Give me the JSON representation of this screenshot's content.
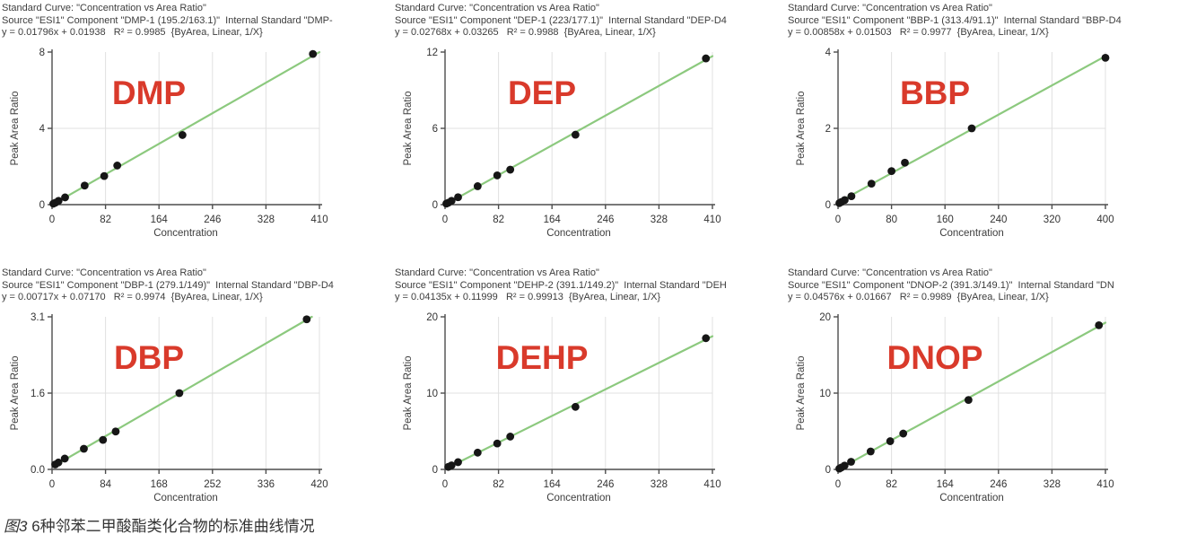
{
  "caption": {
    "figure_label": "图3",
    "text": " 6种邻苯二甲酸酯类化合物的标准曲线情况"
  },
  "colors": {
    "line": "#8cc97e",
    "point": "#161616",
    "compound_label": "#d93a2b",
    "grid": "#e0e0e0",
    "axis": "#4d4d4d",
    "tick": "#4d4d4d"
  },
  "chart_data": [
    {
      "type": "scatter",
      "compound": "DMP",
      "header_lines": [
        "Standard Curve: \"Concentration vs Area Ratio\"",
        "Source \"ESI1\" Component \"DMP-1 (195.2/163.1)\"  Internal Standard \"DMP-",
        "y = 0.01796x + 0.01938   R² = 0.9985  {ByArea, Linear, 1/X}"
      ],
      "equation": {
        "slope": 0.01796,
        "intercept": 0.01938,
        "r2": 0.9985,
        "fit": "Linear",
        "weighting": "1/X",
        "mode": "ByArea"
      },
      "xlabel": "Concentration",
      "ylabel": "Peak Area Ratio",
      "xlim": [
        0,
        410
      ],
      "ylim": [
        0,
        8
      ],
      "x_ticks": [
        0,
        82,
        164,
        246,
        328,
        410
      ],
      "y_ticks": [
        0,
        4,
        8
      ],
      "y_tick_labels": [
        "0",
        "4",
        "8"
      ],
      "points": [
        [
          2,
          0.05
        ],
        [
          5,
          0.1
        ],
        [
          10,
          0.2
        ],
        [
          20,
          0.38
        ],
        [
          50,
          1.0
        ],
        [
          80,
          1.5
        ],
        [
          100,
          2.05
        ],
        [
          200,
          3.65
        ],
        [
          400,
          7.9
        ]
      ]
    },
    {
      "type": "scatter",
      "compound": "DEP",
      "header_lines": [
        "Standard Curve: \"Concentration vs Area Ratio\"",
        "Source \"ESI1\" Component \"DEP-1 (223/177.1)\"  Internal Standard \"DEP-D4",
        "y = 0.02768x + 0.03265   R² = 0.9988  {ByArea, Linear, 1/X}"
      ],
      "equation": {
        "slope": 0.02768,
        "intercept": 0.03265,
        "r2": 0.9988,
        "fit": "Linear",
        "weighting": "1/X",
        "mode": "ByArea"
      },
      "xlabel": "Concentration",
      "ylabel": "Peak Area Ratio",
      "xlim": [
        0,
        410
      ],
      "ylim": [
        0,
        12
      ],
      "x_ticks": [
        0,
        82,
        164,
        246,
        328,
        410
      ],
      "y_ticks": [
        0,
        6,
        12
      ],
      "y_tick_labels": [
        "0",
        "6",
        "12"
      ],
      "points": [
        [
          2,
          0.08
        ],
        [
          5,
          0.15
        ],
        [
          10,
          0.3
        ],
        [
          20,
          0.58
        ],
        [
          50,
          1.45
        ],
        [
          80,
          2.3
        ],
        [
          100,
          2.75
        ],
        [
          200,
          5.5
        ],
        [
          400,
          11.5
        ]
      ]
    },
    {
      "type": "scatter",
      "compound": "BBP",
      "header_lines": [
        "Standard Curve: \"Concentration vs Area Ratio\"",
        "Source \"ESI1\" Component \"BBP-1 (313.4/91.1)\"  Internal Standard \"BBP-D4",
        "y = 0.00858x + 0.01503   R² = 0.9977  {ByArea, Linear, 1/X}"
      ],
      "equation": {
        "slope": 0.00858,
        "intercept": 0.01503,
        "r2": 0.9977,
        "fit": "Linear",
        "weighting": "1/X",
        "mode": "ByArea"
      },
      "xlabel": "Concentration",
      "ylabel": "Peak Area Ratio",
      "xlim": [
        0,
        400
      ],
      "ylim": [
        0,
        4
      ],
      "x_ticks": [
        0,
        80,
        160,
        240,
        320,
        400
      ],
      "y_ticks": [
        0,
        2,
        4
      ],
      "y_tick_labels": [
        "0",
        "2",
        "4"
      ],
      "points": [
        [
          2,
          0.04
        ],
        [
          5,
          0.07
        ],
        [
          10,
          0.12
        ],
        [
          20,
          0.22
        ],
        [
          50,
          0.55
        ],
        [
          80,
          0.88
        ],
        [
          100,
          1.1
        ],
        [
          200,
          2.0
        ],
        [
          400,
          3.85
        ]
      ]
    },
    {
      "type": "scatter",
      "compound": "DBP",
      "header_lines": [
        "Standard Curve: \"Concentration vs Area Ratio\"",
        "Source \"ESI1\" Component \"DBP-1 (279.1/149)\"  Internal Standard \"DBP-D4",
        "y = 0.00717x + 0.07170   R² = 0.9974  {ByArea, Linear, 1/X}"
      ],
      "equation": {
        "slope": 0.00717,
        "intercept": 0.0717,
        "r2": 0.9974,
        "fit": "Linear",
        "weighting": "1/X",
        "mode": "ByArea"
      },
      "xlabel": "Concentration",
      "ylabel": "Peak Area Ratio",
      "xlim": [
        0,
        420
      ],
      "ylim": [
        0,
        3.1
      ],
      "x_ticks": [
        0,
        84,
        168,
        252,
        336,
        420
      ],
      "y_ticks": [
        0,
        1.55,
        3.1
      ],
      "y_tick_labels": [
        "0.0",
        "1.6",
        "3.1"
      ],
      "points": [
        [
          5,
          0.1
        ],
        [
          10,
          0.14
        ],
        [
          20,
          0.22
        ],
        [
          50,
          0.42
        ],
        [
          80,
          0.6
        ],
        [
          100,
          0.77
        ],
        [
          200,
          1.55
        ],
        [
          400,
          3.05
        ]
      ]
    },
    {
      "type": "scatter",
      "compound": "DEHP",
      "header_lines": [
        "Standard Curve: \"Concentration vs Area Ratio\"",
        "Source \"ESI1\" Component \"DEHP-2 (391.1/149.2)\"  Internal Standard \"DEH",
        "y = 0.04135x + 0.11999   R² = 0.99913  {ByArea, Linear, 1/X}"
      ],
      "equation": {
        "slope": 0.04135,
        "intercept": 0.11999,
        "r2": 0.99913,
        "fit": "Linear",
        "weighting": "1/X",
        "mode": "ByArea"
      },
      "xlabel": "Concentration",
      "ylabel": "Peak Area Ratio",
      "xlim": [
        0,
        410
      ],
      "ylim": [
        0,
        20
      ],
      "x_ticks": [
        0,
        82,
        164,
        246,
        328,
        410
      ],
      "y_ticks": [
        0,
        10,
        20
      ],
      "y_tick_labels": [
        "0",
        "10",
        "20"
      ],
      "points": [
        [
          5,
          0.33
        ],
        [
          10,
          0.53
        ],
        [
          20,
          0.95
        ],
        [
          50,
          2.2
        ],
        [
          80,
          3.4
        ],
        [
          100,
          4.3
        ],
        [
          200,
          8.2
        ],
        [
          400,
          17.2
        ]
      ]
    },
    {
      "type": "scatter",
      "compound": "DNOP",
      "header_lines": [
        "Standard Curve: \"Concentration vs Area Ratio\"",
        "Source \"ESI1\" Component \"DNOP-2 (391.3/149.1)\"  Internal Standard \"DN",
        "y = 0.04576x + 0.01667   R² = 0.9989  {ByArea, Linear, 1/X}"
      ],
      "equation": {
        "slope": 0.04576,
        "intercept": 0.01667,
        "r2": 0.9989,
        "fit": "Linear",
        "weighting": "1/X",
        "mode": "ByArea"
      },
      "xlabel": "Concentration",
      "ylabel": "Peak Area Ratio",
      "xlim": [
        0,
        410
      ],
      "ylim": [
        0,
        20
      ],
      "x_ticks": [
        0,
        82,
        164,
        246,
        328,
        410
      ],
      "y_ticks": [
        0,
        10,
        20
      ],
      "y_tick_labels": [
        "0",
        "10",
        "20"
      ],
      "points": [
        [
          2,
          0.1
        ],
        [
          5,
          0.25
        ],
        [
          10,
          0.5
        ],
        [
          20,
          1.0
        ],
        [
          50,
          2.35
        ],
        [
          80,
          3.7
        ],
        [
          100,
          4.7
        ],
        [
          200,
          9.1
        ],
        [
          400,
          18.9
        ]
      ]
    }
  ]
}
